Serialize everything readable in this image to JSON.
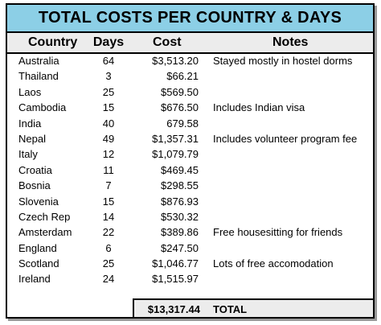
{
  "title": "TOTAL COSTS PER COUNTRY & DAYS",
  "columns": {
    "country": "Country",
    "days": "Days",
    "cost": "Cost",
    "notes": "Notes"
  },
  "rows": [
    {
      "country": "Australia",
      "days": "64",
      "cost": "$3,513.20",
      "notes": "Stayed mostly in hostel dorms"
    },
    {
      "country": "Thailand",
      "days": "3",
      "cost": "$66.21",
      "notes": ""
    },
    {
      "country": "Laos",
      "days": "25",
      "cost": "$569.50",
      "notes": ""
    },
    {
      "country": "Cambodia",
      "days": "15",
      "cost": "$676.50",
      "notes": "Includes Indian visa"
    },
    {
      "country": "India",
      "days": "40",
      "cost": "679.58",
      "notes": ""
    },
    {
      "country": "Nepal",
      "days": "49",
      "cost": "$1,357.31",
      "notes": "Includes volunteer program fee"
    },
    {
      "country": "Italy",
      "days": "12",
      "cost": "$1,079.79",
      "notes": ""
    },
    {
      "country": "Croatia",
      "days": "11",
      "cost": "$469.45",
      "notes": ""
    },
    {
      "country": "Bosnia",
      "days": "7",
      "cost": "$298.55",
      "notes": ""
    },
    {
      "country": "Slovenia",
      "days": "15",
      "cost": "$876.93",
      "notes": ""
    },
    {
      "country": "Czech Rep",
      "days": "14",
      "cost": "$530.32",
      "notes": ""
    },
    {
      "country": "Amsterdam",
      "days": "22",
      "cost": "$389.86",
      "notes": "Free housesitting for friends"
    },
    {
      "country": "England",
      "days": "6",
      "cost": "$247.50",
      "notes": ""
    },
    {
      "country": "Scotland",
      "days": "25",
      "cost": "$1,046.77",
      "notes": "Lots of free accomodation"
    },
    {
      "country": "Ireland",
      "days": "24",
      "cost": "$1,515.97",
      "notes": ""
    }
  ],
  "total": {
    "amount": "$13,317.44",
    "label": "TOTAL"
  },
  "colors": {
    "title_bg": "#8ccfe6",
    "header_bg": "#ececec"
  }
}
